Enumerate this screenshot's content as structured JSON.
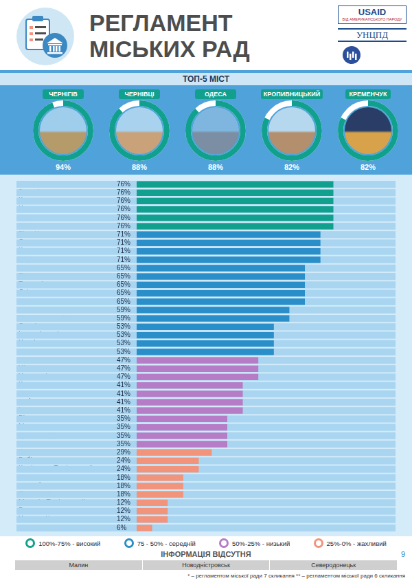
{
  "header": {
    "title": [
      "РЕГЛАМЕНТ",
      "МІСЬКИХ РАД"
    ],
    "logos": [
      "USAID",
      "ВІД АМЕРИКАНСЬКОГО НАРОДУ",
      "УНЦПД"
    ]
  },
  "top5": {
    "title": "ТОП-5 МІСТ",
    "cities": [
      {
        "name": "ЧЕРНІГІВ",
        "value": 94,
        "label": "94%"
      },
      {
        "name": "ЧЕРНІВЦІ",
        "value": 88,
        "label": "88%"
      },
      {
        "name": "ОДЕСА",
        "value": 88,
        "label": "88%"
      },
      {
        "name": "КРОПИВНИЦЬКИЙ",
        "value": 82,
        "label": "82%"
      },
      {
        "name": "КРЕМЕНЧУК",
        "value": 82,
        "label": "82%"
      }
    ]
  },
  "chart_data": {
    "type": "bar",
    "orientation": "horizontal",
    "data_labels": true,
    "tick_labels": "y",
    "grid": false,
    "legend": "bottom",
    "xlim": [
      0,
      100
    ],
    "categories": [
      "Житомир",
      "Запоріжжя",
      "Калуш",
      "Черкаси",
      "Луцьк",
      "Рівне*",
      "Біла Церква",
      "Суми",
      "Конотоп",
      "Херсон",
      "Львів",
      "Полтава",
      "Тернопіль",
      "Дніпро",
      "Кривий Ріг",
      "Бердянськ",
      "Хмельницький",
      "Слов'янськ",
      "Івано-Франківськ",
      "Харків",
      "Миколаїв",
      "Олександрія",
      "Ніжин",
      "Ужгород*",
      "Краматорськ",
      "Київ",
      "Дубно",
      "Ізюм",
      "Вінниця",
      "Мукачево",
      "Кременець",
      "Ватутіне",
      "Каховка",
      "Рубіжне",
      "Кам'янець-Подільський",
      "Ковель",
      "Дрогобич",
      "Первомайськ",
      "Могилів-Подільський",
      "Балта",
      "Ужгород**",
      "Рівне**"
    ],
    "series": [
      {
        "name": "100%-75% - високий",
        "color": "#12a08e",
        "values": [
          76,
          76,
          76,
          76,
          76,
          76,
          null,
          null,
          null,
          null,
          null,
          null,
          null,
          null,
          null,
          null,
          null,
          null,
          null,
          null,
          null,
          null,
          null,
          null,
          null,
          null,
          null,
          null,
          null,
          null,
          null,
          null,
          null,
          null,
          null,
          null,
          null,
          null,
          null,
          null,
          null,
          null
        ],
        "value_labels": [
          "76%",
          "76%",
          "76%",
          "76%",
          "76%",
          "76%",
          null,
          null,
          null,
          null,
          null,
          null,
          null,
          null,
          null,
          null,
          null,
          null,
          null,
          null,
          null,
          null,
          null,
          null,
          null,
          null,
          null,
          null,
          null,
          null,
          null,
          null,
          null,
          null,
          null,
          null,
          null,
          null,
          null,
          null,
          null,
          null
        ]
      },
      {
        "name": "75 - 50% - середній",
        "color": "#2a8ec9",
        "values": [
          null,
          null,
          null,
          null,
          null,
          null,
          71,
          71,
          71,
          71,
          65,
          65,
          65,
          65,
          65,
          59,
          59,
          53,
          53,
          53,
          53,
          null,
          null,
          null,
          null,
          null,
          null,
          null,
          null,
          null,
          null,
          null,
          null,
          null,
          null,
          null,
          null,
          null,
          null,
          null,
          null,
          null
        ],
        "value_labels": [
          null,
          null,
          null,
          null,
          null,
          null,
          "71%",
          "71%",
          "71%",
          "71%",
          "65%",
          "65%",
          "65%",
          "65%",
          "65%",
          "59%",
          "59%",
          "53%",
          "53%",
          "53%",
          "53%",
          null,
          null,
          null,
          null,
          null,
          null,
          null,
          null,
          null,
          null,
          null,
          null,
          null,
          null,
          null,
          null,
          null,
          null,
          null,
          null,
          null
        ]
      },
      {
        "name": "50%-25% - низький",
        "color": "#b67cc6",
        "values": [
          null,
          null,
          null,
          null,
          null,
          null,
          null,
          null,
          null,
          null,
          null,
          null,
          null,
          null,
          null,
          null,
          null,
          null,
          null,
          null,
          null,
          47,
          47,
          47,
          41,
          41,
          41,
          41,
          35,
          35,
          35,
          35,
          null,
          null,
          null,
          null,
          null,
          null,
          null,
          null,
          null,
          null
        ],
        "value_labels": [
          null,
          null,
          null,
          null,
          null,
          null,
          null,
          null,
          null,
          null,
          null,
          null,
          null,
          null,
          null,
          null,
          null,
          null,
          null,
          null,
          null,
          "47%",
          "47%",
          "47%",
          "41%",
          "41%",
          "41%",
          "41%",
          "35%",
          "35%",
          "35%",
          "35%",
          null,
          null,
          null,
          null,
          null,
          null,
          null,
          null,
          null,
          null
        ]
      },
      {
        "name": "25%-0% - жахливий",
        "color": "#f2937c",
        "values": [
          null,
          null,
          null,
          null,
          null,
          null,
          null,
          null,
          null,
          null,
          null,
          null,
          null,
          null,
          null,
          null,
          null,
          null,
          null,
          null,
          null,
          null,
          null,
          null,
          null,
          null,
          null,
          null,
          null,
          null,
          null,
          null,
          29,
          24,
          24,
          18,
          18,
          18,
          12,
          12,
          12,
          6
        ],
        "value_labels": [
          null,
          null,
          null,
          null,
          null,
          null,
          null,
          null,
          null,
          null,
          null,
          null,
          null,
          null,
          null,
          null,
          null,
          null,
          null,
          null,
          null,
          null,
          null,
          null,
          null,
          null,
          null,
          null,
          null,
          null,
          null,
          null,
          "29%",
          "24%",
          "24%",
          "18%",
          "18%",
          "18%",
          "12%",
          "12%",
          "12%",
          "6%"
        ]
      }
    ]
  },
  "missing": {
    "title": "ІНФОРМАЦІЯ ВІДСУТНЯ",
    "cities": [
      "Малин",
      "Новодністровськ",
      "Северодонецьк"
    ]
  },
  "footnotes": [
    "* – регламентом міської ради 7 скликання",
    "** – регламентом міської ради 6 скликання"
  ],
  "page_number": "9"
}
